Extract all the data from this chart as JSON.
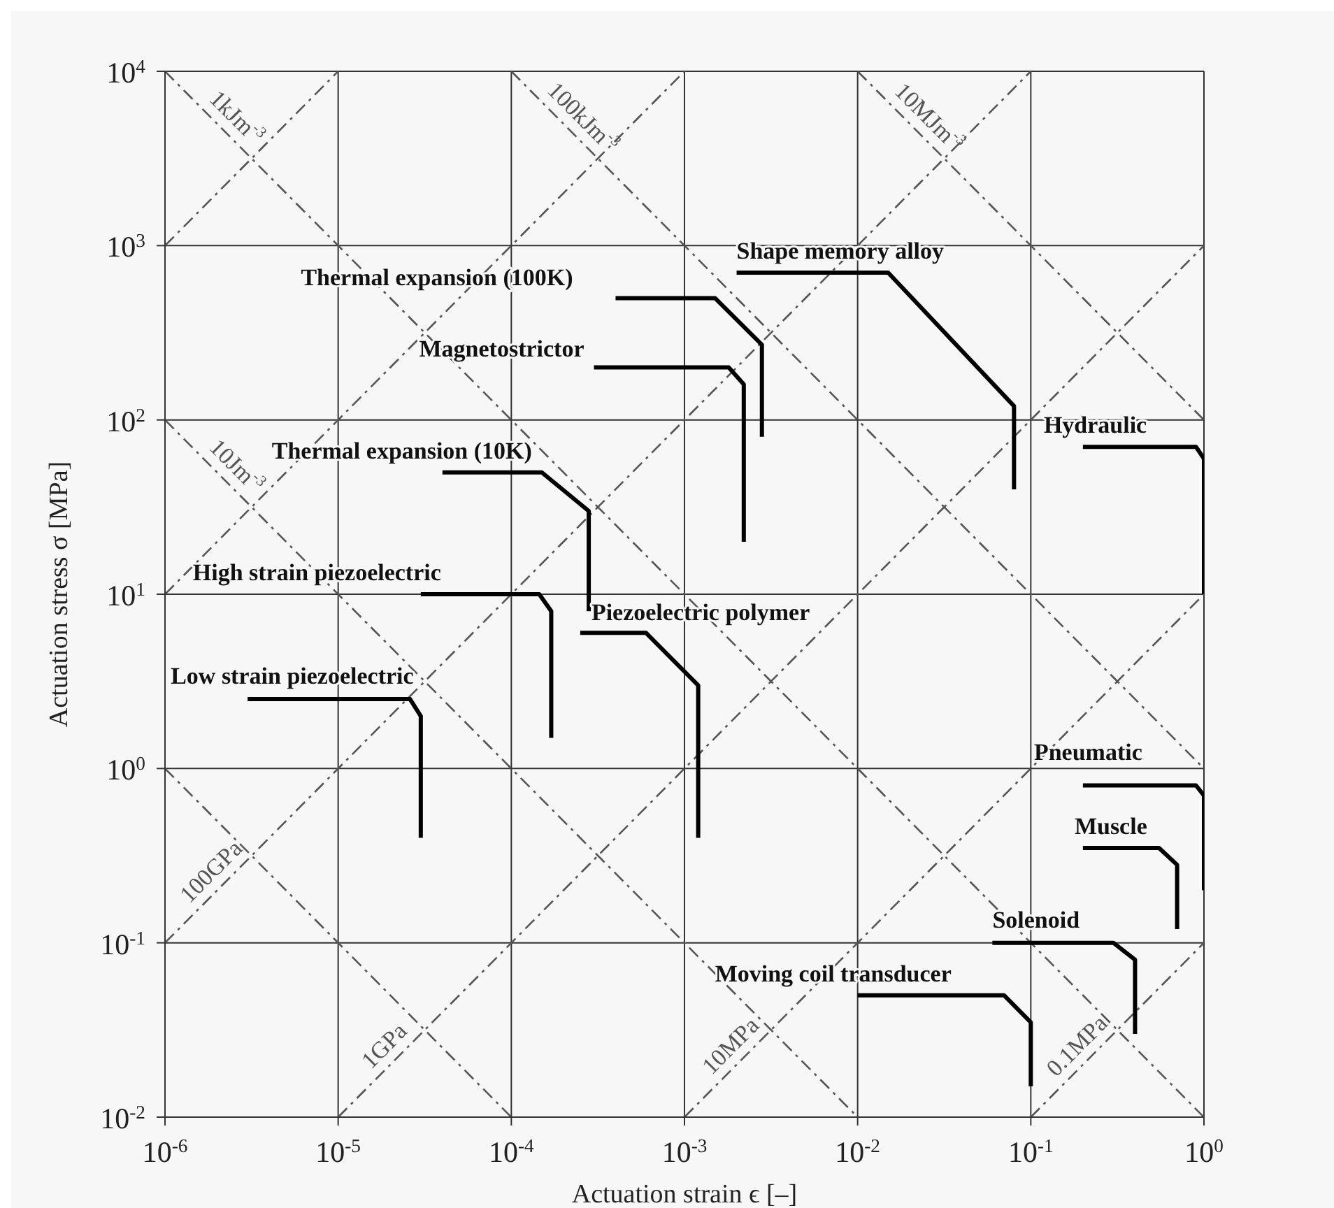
{
  "chart_data": {
    "type": "line",
    "xlabel": "Actuation strain ϵ [–]",
    "ylabel": "Actuation stress σ [MPa]",
    "log": "xy",
    "grid": true,
    "marker": "none",
    "line_style": "solid",
    "xlim": [
      1e-06,
      1
    ],
    "ylim": [
      0.01,
      10000
    ],
    "xticks": [
      {
        "value": 1e-06,
        "label": "10$^{-6}$"
      },
      {
        "value": 1e-05,
        "label": "10$^{-5}$"
      },
      {
        "value": 0.0001,
        "label": "10$^{-4}$"
      },
      {
        "value": 0.001,
        "label": "10$^{-3}$"
      },
      {
        "value": 0.01,
        "label": "10$^{-2}$"
      },
      {
        "value": 0.1,
        "label": "10$^{-1}$"
      },
      {
        "value": 1,
        "label": "10$^{0}$"
      }
    ],
    "yticks": [
      {
        "value": 0.01,
        "label": "10$^{-2}$"
      },
      {
        "value": 0.1,
        "label": "10$^{-1}$"
      },
      {
        "value": 1,
        "label": "10$^{0}$"
      },
      {
        "value": 10,
        "label": "10$^{1}$"
      },
      {
        "value": 100,
        "label": "10$^{2}$"
      },
      {
        "value": 1000,
        "label": "10$^{3}$"
      },
      {
        "value": 10000,
        "label": "10$^{4}$"
      }
    ],
    "series": [
      {
        "name": "1kJm$^{-3}$",
        "color": "#555555",
        "line_style": "dashed",
        "x": [
          1e-06,
          1
        ],
        "values": [
          10000,
          0.01
        ]
      },
      {
        "name": "100kJm$^{-3}$",
        "color": "#555555",
        "line_style": "dashed",
        "x": [
          0.0001,
          1
        ],
        "values": [
          10000,
          1
        ]
      },
      {
        "name": "10MJm$^{-3}$",
        "color": "#555555",
        "line_style": "dashed",
        "x": [
          0.01,
          1
        ],
        "values": [
          10000,
          100
        ]
      },
      {
        "name": "10Jm$^{-3}$",
        "color": "#555555",
        "line_style": "dashed",
        "x": [
          1e-06,
          0.01
        ],
        "values": [
          100,
          0.01
        ]
      },
      {
        "color": "#555555",
        "line_style": "dashed",
        "x": [
          1e-06,
          0.0001
        ],
        "values": [
          1,
          0.01
        ]
      },
      {
        "color": "#555555",
        "line_style": "dashed",
        "x": [
          1e-06,
          1e-05
        ],
        "values": [
          1000,
          10000
        ]
      },
      {
        "color": "#555555",
        "line_style": "dashed",
        "x": [
          1e-06,
          0.001
        ],
        "values": [
          10,
          10000
        ]
      },
      {
        "name": "100GPa",
        "color": "#555555",
        "line_style": "dashed",
        "x": [
          1e-06,
          0.1
        ],
        "values": [
          0.1,
          10000
        ]
      },
      {
        "name": "1GPa",
        "color": "#555555",
        "line_style": "dashed",
        "x": [
          1e-05,
          1
        ],
        "values": [
          0.01,
          1000
        ]
      },
      {
        "name": "10MPa",
        "color": "#555555",
        "line_style": "dashed",
        "x": [
          0.001,
          1
        ],
        "values": [
          0.01,
          10
        ]
      },
      {
        "name": "0.1MPa",
        "color": "#555555",
        "line_style": "dashed",
        "x": [
          0.1,
          1
        ],
        "values": [
          0.01,
          0.1
        ]
      },
      {
        "name": "Low strain piezoelectric",
        "color": "#000000",
        "x": [
          3e-06,
          2.6e-05,
          3e-05,
          3e-05
        ],
        "values": [
          2.5,
          2.5,
          2,
          0.4
        ]
      },
      {
        "name": "High strain piezoelectric",
        "color": "#000000",
        "x": [
          3e-05,
          0.000145,
          0.00017,
          0.00017
        ],
        "values": [
          10,
          10,
          8,
          1.5
        ]
      },
      {
        "name": "Thermal expansion (10K)",
        "color": "#000000",
        "x": [
          4e-05,
          0.00015,
          0.00028,
          0.00028
        ],
        "values": [
          50,
          50,
          30,
          8
        ]
      },
      {
        "name": "Piezoelectric polymer",
        "color": "#000000",
        "x": [
          0.00025,
          0.0006,
          0.0012,
          0.0012
        ],
        "values": [
          6,
          6,
          3,
          0.4
        ]
      },
      {
        "name": "Thermal expansion (100K)",
        "color": "#000000",
        "x": [
          0.0004,
          0.0015,
          0.0028,
          0.0028
        ],
        "values": [
          500,
          500,
          270,
          80
        ]
      },
      {
        "name": "Magnetostrictor",
        "color": "#000000",
        "x": [
          0.0003,
          0.0018,
          0.0022,
          0.0022
        ],
        "values": [
          200,
          200,
          160,
          20
        ]
      },
      {
        "name": "Shape memory alloy",
        "color": "#000000",
        "x": [
          0.002,
          0.015,
          0.08,
          0.08
        ],
        "values": [
          700,
          700,
          120,
          40
        ]
      },
      {
        "name": "Hydraulic",
        "color": "#000000",
        "x": [
          0.2,
          0.9,
          1,
          1
        ],
        "values": [
          70,
          70,
          60,
          10
        ]
      },
      {
        "name": "Pneumatic",
        "color": "#000000",
        "x": [
          0.2,
          0.9,
          1,
          1
        ],
        "values": [
          0.8,
          0.8,
          0.7,
          0.2
        ]
      },
      {
        "name": "Muscle",
        "color": "#000000",
        "x": [
          0.2,
          0.55,
          0.7,
          0.7
        ],
        "values": [
          0.35,
          0.35,
          0.28,
          0.12
        ]
      },
      {
        "name": "Solenoid",
        "color": "#000000",
        "x": [
          0.06,
          0.3,
          0.4,
          0.4
        ],
        "values": [
          0.1,
          0.1,
          0.08,
          0.03
        ]
      },
      {
        "name": "Moving coil transducer",
        "color": "#000000",
        "x": [
          0.01,
          0.07,
          0.1,
          0.1
        ],
        "values": [
          0.05,
          0.05,
          0.035,
          0.015
        ]
      }
    ]
  }
}
